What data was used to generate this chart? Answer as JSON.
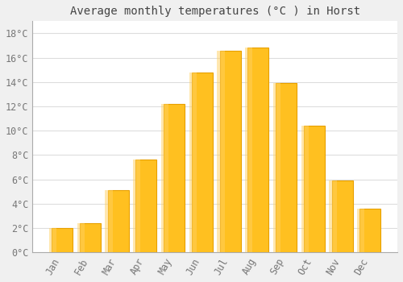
{
  "title": "Average monthly temperatures (°C ) in Horst",
  "months": [
    "Jan",
    "Feb",
    "Mar",
    "Apr",
    "May",
    "Jun",
    "Jul",
    "Aug",
    "Sep",
    "Oct",
    "Nov",
    "Dec"
  ],
  "temperatures": [
    2.0,
    2.4,
    5.1,
    7.6,
    12.2,
    14.8,
    16.6,
    16.8,
    13.9,
    10.4,
    5.9,
    3.6
  ],
  "bar_color_main": "#FFC020",
  "bar_color_edge": "#E8A000",
  "background_color": "#F0F0F0",
  "plot_bg_color": "#FFFFFF",
  "grid_color": "#DDDDDD",
  "yticks": [
    0,
    2,
    4,
    6,
    8,
    10,
    12,
    14,
    16,
    18
  ],
  "ylim": [
    0,
    19
  ],
  "title_fontsize": 10,
  "tick_fontsize": 8.5,
  "font_family": "monospace",
  "tick_color": "#777777",
  "title_color": "#444444"
}
